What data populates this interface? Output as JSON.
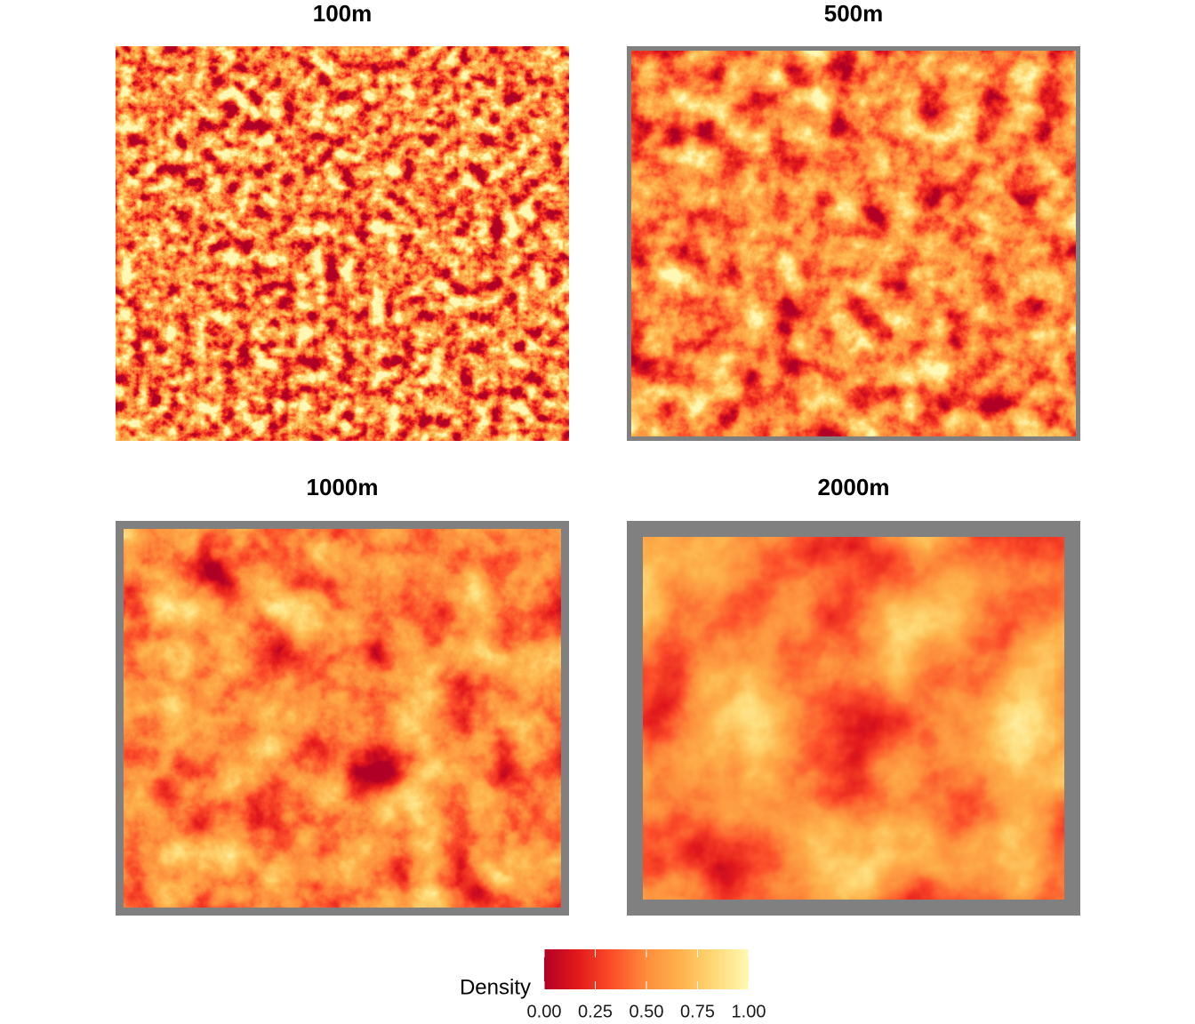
{
  "chart_data": {
    "type": "raster-panels",
    "panels": [
      "100m",
      "500m",
      "1000m",
      "2000m"
    ],
    "legend": {
      "title": "Density",
      "lim": [
        0,
        1
      ],
      "ticks": [
        {
          "value": 0,
          "label": "0.00"
        },
        {
          "value": 0.25,
          "label": "0.25"
        },
        {
          "value": 0.5,
          "label": "0.50"
        },
        {
          "value": 0.75,
          "label": "0.75"
        },
        {
          "value": 1,
          "label": "1.00"
        }
      ],
      "colors": [
        "#b10026",
        "#e31a1c",
        "#fc4e2a",
        "#fd8d3c",
        "#feb24c",
        "#fed976",
        "#fff9b5"
      ]
    }
  }
}
